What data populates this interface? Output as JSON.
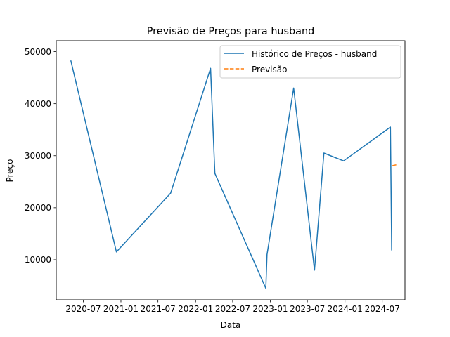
{
  "chart_data": {
    "type": "line",
    "title": "Previsão de Preços para husband",
    "xlabel": "Data",
    "ylabel": "Preço",
    "x_tick_labels": [
      "2020-07",
      "2021-01",
      "2021-07",
      "2022-01",
      "2022-07",
      "2023-01",
      "2023-07",
      "2024-01",
      "2024-07"
    ],
    "y_tick_labels": [
      "10000",
      "20000",
      "30000",
      "40000",
      "50000"
    ],
    "y_ticks": [
      10000,
      20000,
      30000,
      40000,
      50000
    ],
    "xlim": [
      "2020-02-20",
      "2024-10-20"
    ],
    "ylim": [
      2300,
      52100
    ],
    "grid": false,
    "legend_position": "upper right",
    "series": [
      {
        "name": "Histórico de Preços - husband",
        "color": "#1f77b4",
        "style": "solid",
        "points": [
          {
            "x": "2020-05-01",
            "y": 48300
          },
          {
            "x": "2020-12-10",
            "y": 11500
          },
          {
            "x": "2021-09-01",
            "y": 22800
          },
          {
            "x": "2022-03-15",
            "y": 46800
          },
          {
            "x": "2022-04-05",
            "y": 26600
          },
          {
            "x": "2022-12-10",
            "y": 4500
          },
          {
            "x": "2022-12-16",
            "y": 11000
          },
          {
            "x": "2023-04-25",
            "y": 43000
          },
          {
            "x": "2023-08-05",
            "y": 8000
          },
          {
            "x": "2023-09-20",
            "y": 30500
          },
          {
            "x": "2023-12-25",
            "y": 29000
          },
          {
            "x": "2024-08-10",
            "y": 35500
          },
          {
            "x": "2024-08-16",
            "y": 11800
          }
        ]
      },
      {
        "name": "Previsão",
        "color": "#ff7f0e",
        "style": "dashed",
        "points": [
          {
            "x": "2024-08-20",
            "y": 28100
          },
          {
            "x": "2024-09-15",
            "y": 28300
          }
        ]
      }
    ]
  }
}
